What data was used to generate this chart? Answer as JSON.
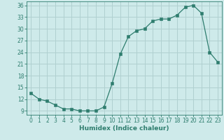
{
  "x": [
    0,
    1,
    2,
    3,
    4,
    5,
    6,
    7,
    8,
    9,
    10,
    11,
    12,
    13,
    14,
    15,
    16,
    17,
    18,
    19,
    20,
    21,
    22,
    23
  ],
  "y": [
    13.5,
    12.0,
    11.5,
    10.5,
    9.5,
    9.5,
    9.0,
    9.0,
    9.0,
    10.0,
    16.0,
    23.5,
    28.0,
    29.5,
    30.0,
    32.0,
    32.5,
    32.5,
    33.5,
    35.5,
    36.0,
    34.0,
    24.0,
    21.5
  ],
  "line_color": "#2e7d6e",
  "marker": "s",
  "marker_size": 2.5,
  "bg_color": "#ceeaea",
  "grid_color": "#b0d0d0",
  "xlabel": "Humidex (Indice chaleur)",
  "xlim": [
    -0.5,
    23.5
  ],
  "ylim": [
    8,
    37
  ],
  "yticks": [
    9,
    12,
    15,
    18,
    21,
    24,
    27,
    30,
    33,
    36
  ],
  "xticks": [
    0,
    1,
    2,
    3,
    4,
    5,
    6,
    7,
    8,
    9,
    10,
    11,
    12,
    13,
    14,
    15,
    16,
    17,
    18,
    19,
    20,
    21,
    22,
    23
  ],
  "label_fontsize": 6.5,
  "tick_fontsize": 5.5
}
